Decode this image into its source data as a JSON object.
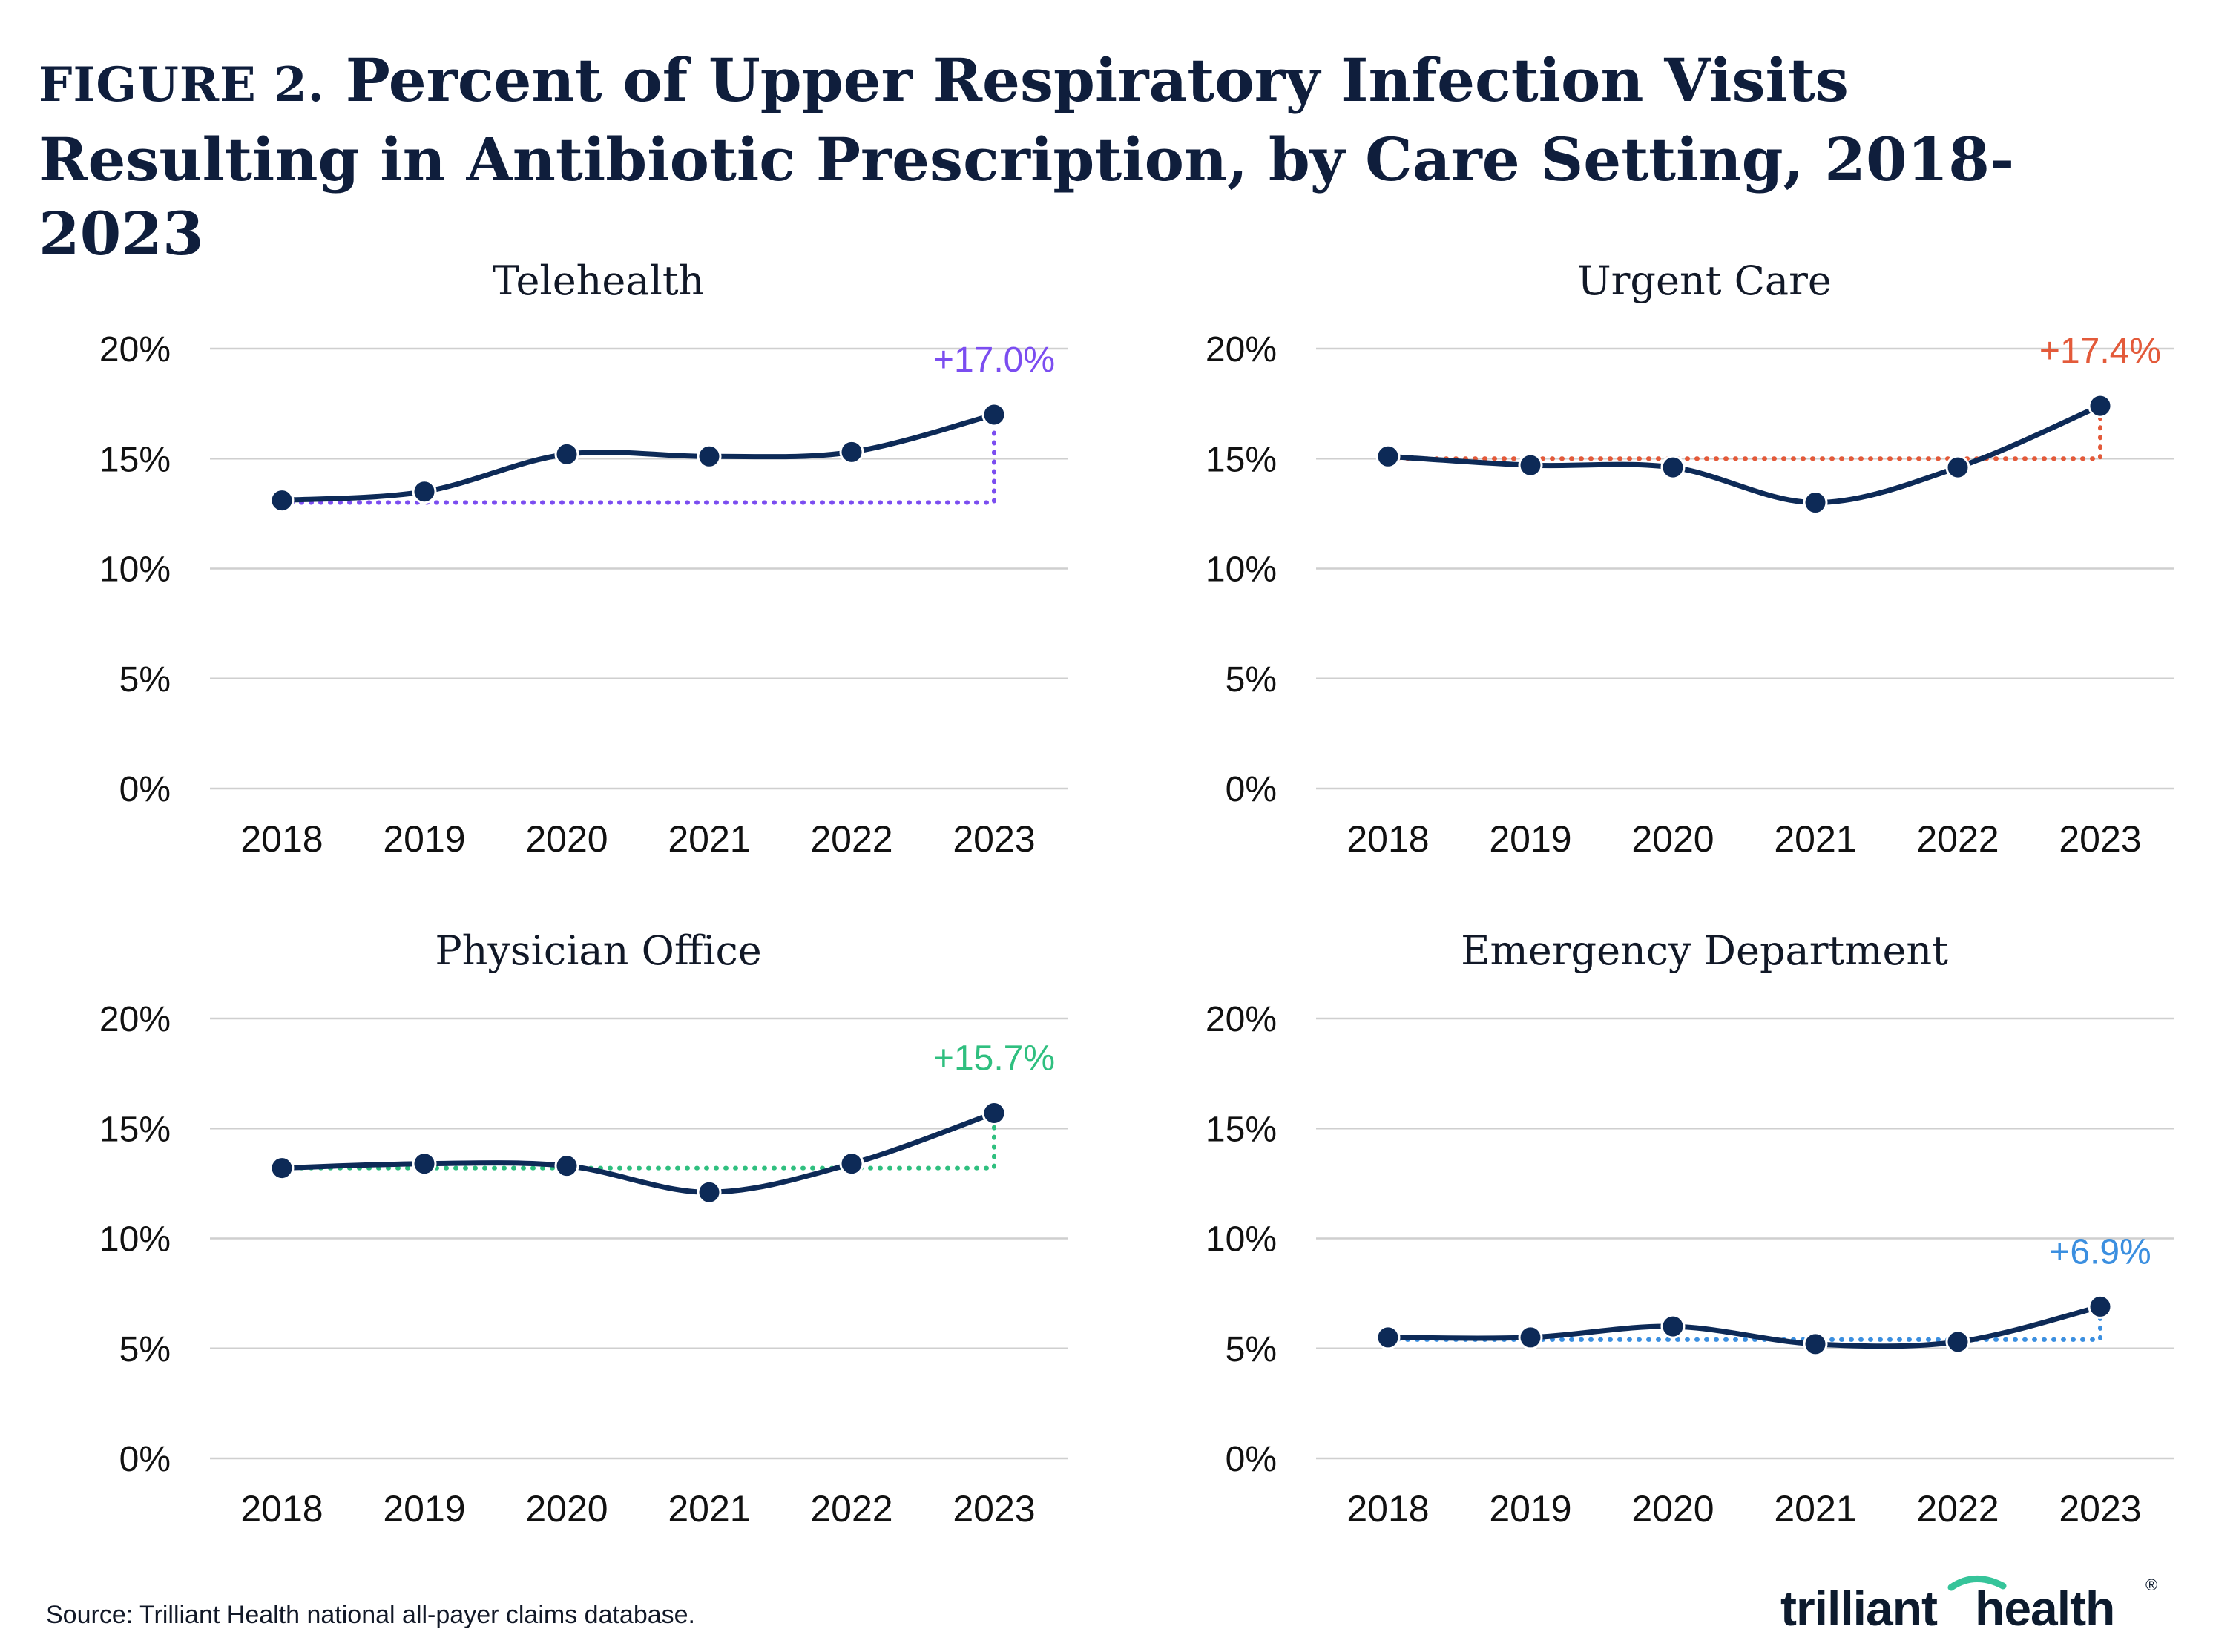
{
  "title": {
    "label": "FIGURE 2.",
    "text": "Percent of Upper Respiratory Infection Visits Resulting in Antibiotic Prescription, by Care Setting, 2018-2023"
  },
  "source": "Source: Trilliant Health national all-payer claims database.",
  "logo": {
    "part1": "trilliant",
    "part2": "health",
    "mark": "®"
  },
  "chart_data": [
    {
      "type": "line",
      "title": "Telehealth",
      "x": [
        "2018",
        "2019",
        "2020",
        "2021",
        "2022",
        "2023"
      ],
      "values": [
        13.1,
        13.5,
        15.2,
        15.1,
        15.3,
        17.0
      ],
      "baseline": 13.0,
      "yticks": [
        "0%",
        "5%",
        "10%",
        "15%",
        "20%"
      ],
      "ylim": [
        0,
        20
      ],
      "annotation": "+17.0%",
      "accent": "#7b4df0"
    },
    {
      "type": "line",
      "title": "Urgent Care",
      "x": [
        "2018",
        "2019",
        "2020",
        "2021",
        "2022",
        "2023"
      ],
      "values": [
        15.1,
        14.7,
        14.6,
        13.0,
        14.6,
        17.4
      ],
      "baseline": 15.0,
      "yticks": [
        "0%",
        "5%",
        "10%",
        "15%",
        "20%"
      ],
      "ylim": [
        0,
        20
      ],
      "annotation": "+17.4%",
      "accent": "#e35a3a"
    },
    {
      "type": "line",
      "title": "Physician Office",
      "x": [
        "2018",
        "2019",
        "2020",
        "2021",
        "2022",
        "2023"
      ],
      "values": [
        13.2,
        13.4,
        13.3,
        12.1,
        13.4,
        15.7
      ],
      "baseline": 13.2,
      "yticks": [
        "0%",
        "5%",
        "10%",
        "15%",
        "20%"
      ],
      "ylim": [
        0,
        20
      ],
      "annotation": "+15.7%",
      "accent": "#2fbf7f"
    },
    {
      "type": "line",
      "title": "Emergency Department",
      "x": [
        "2018",
        "2019",
        "2020",
        "2021",
        "2022",
        "2023"
      ],
      "values": [
        5.5,
        5.5,
        6.0,
        5.2,
        5.3,
        6.9
      ],
      "baseline": 5.4,
      "yticks": [
        "0%",
        "5%",
        "10%",
        "15%",
        "20%"
      ],
      "ylim": [
        0,
        20
      ],
      "annotation": "+6.9%",
      "accent": "#3b8fe0"
    }
  ]
}
